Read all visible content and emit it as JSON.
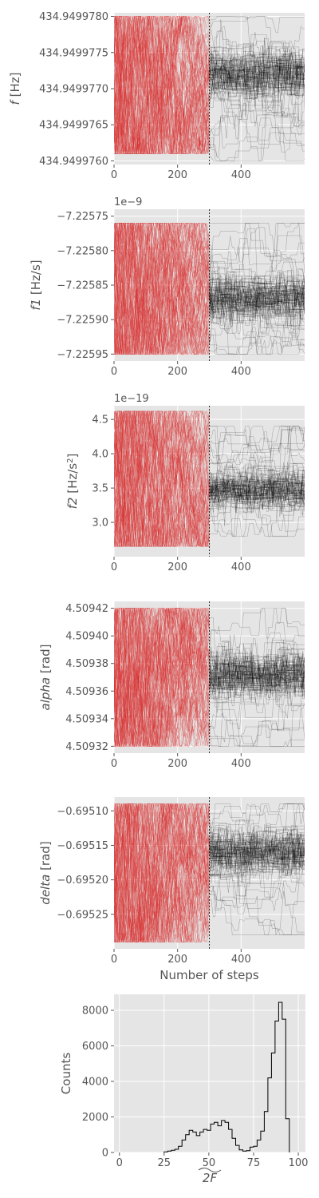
{
  "chart_data": [
    {
      "type": "line",
      "panel": "f",
      "ylabel": "f [Hz]",
      "ylabel_italic_symbol": "f",
      "ylabel_unit": " [Hz]",
      "offset_text": "",
      "x_ticks": [
        "0",
        "200",
        "400"
      ],
      "x_tick_values": [
        0,
        200,
        400
      ],
      "y_ticks": [
        "434.9499780",
        "434.9499775",
        "434.9499770",
        "434.9499765",
        "434.9499760"
      ],
      "y_tick_values": [
        434.949978,
        434.9499775,
        434.949977,
        434.9499765,
        434.949976
      ],
      "xlim": [
        0,
        600
      ],
      "ylim": [
        434.94997595,
        434.94997805
      ],
      "burnin_step": 300,
      "series": [
        {
          "role": "burn-in",
          "color": "#d62728",
          "x_range": [
            0,
            300
          ],
          "band_low": 434.9499761,
          "band_high": 434.949978,
          "center": 434.949977
        },
        {
          "role": "production",
          "color": "#000000",
          "x_range": [
            300,
            600
          ],
          "band_low": 434.949976,
          "band_high": 434.949978,
          "center": 434.9499772
        }
      ]
    },
    {
      "type": "line",
      "panel": "f1",
      "ylabel": "f1 [Hz/s]",
      "ylabel_italic_symbol": "f1",
      "ylabel_unit": " [Hz/s]",
      "offset_text": "1e−9",
      "x_ticks": [
        "0",
        "200",
        "400"
      ],
      "x_tick_values": [
        0,
        200,
        400
      ],
      "y_ticks": [
        "−7.22575",
        "−7.22580",
        "−7.22585",
        "−7.22590",
        "−7.22595"
      ],
      "y_tick_values": [
        -7.22575,
        -7.2258,
        -7.22585,
        -7.2259,
        -7.22595
      ],
      "xlim": [
        0,
        600
      ],
      "ylim": [
        -7.22596,
        -7.22574
      ],
      "burnin_step": 300,
      "series": [
        {
          "role": "burn-in",
          "color": "#d62728",
          "x_range": [
            0,
            300
          ],
          "band_low": -7.22595,
          "band_high": -7.22576,
          "center": -7.22586
        },
        {
          "role": "production",
          "color": "#000000",
          "x_range": [
            300,
            600
          ],
          "band_low": -7.22595,
          "band_high": -7.22576,
          "center": -7.22587
        }
      ]
    },
    {
      "type": "line",
      "panel": "f2",
      "ylabel": "f2 [Hz/s²]",
      "ylabel_italic_symbol": "f2",
      "ylabel_unit": " [Hz/s",
      "ylabel_sup": "2",
      "ylabel_tail": "]",
      "offset_text": "1e−19",
      "x_ticks": [
        "0",
        "200",
        "400"
      ],
      "x_tick_values": [
        0,
        200,
        400
      ],
      "y_ticks": [
        "4.5",
        "4.0",
        "3.5",
        "3.0"
      ],
      "y_tick_values": [
        4.5,
        4.0,
        3.5,
        3.0
      ],
      "xlim": [
        0,
        600
      ],
      "ylim": [
        2.5,
        4.7
      ],
      "burnin_step": 300,
      "series": [
        {
          "role": "burn-in",
          "color": "#d62728",
          "x_range": [
            0,
            300
          ],
          "band_low": 2.65,
          "band_high": 4.62,
          "center": 3.55
        },
        {
          "role": "production",
          "color": "#000000",
          "x_range": [
            300,
            600
          ],
          "band_low": 2.8,
          "band_high": 4.4,
          "center": 3.47
        }
      ]
    },
    {
      "type": "line",
      "panel": "alpha",
      "ylabel": "alpha [rad]",
      "ylabel_italic_symbol": "alpha",
      "ylabel_unit": " [rad]",
      "offset_text": "",
      "x_ticks": [
        "0",
        "200",
        "400"
      ],
      "x_tick_values": [
        0,
        200,
        400
      ],
      "y_ticks": [
        "4.50942",
        "4.50940",
        "4.50938",
        "4.50936",
        "4.50934",
        "4.50932"
      ],
      "y_tick_values": [
        4.50942,
        4.5094,
        4.50938,
        4.50936,
        4.50934,
        4.50932
      ],
      "xlim": [
        0,
        600
      ],
      "ylim": [
        4.509315,
        4.509425
      ],
      "burnin_step": 300,
      "series": [
        {
          "role": "burn-in",
          "color": "#d62728",
          "x_range": [
            0,
            300
          ],
          "band_low": 4.50932,
          "band_high": 4.50942,
          "center": 4.50937
        },
        {
          "role": "production",
          "color": "#000000",
          "x_range": [
            300,
            600
          ],
          "band_low": 4.50932,
          "band_high": 4.50942,
          "center": 4.509372
        }
      ]
    },
    {
      "type": "line",
      "panel": "delta",
      "ylabel": "delta [rad]",
      "ylabel_italic_symbol": "delta",
      "ylabel_unit": " [rad]",
      "xlabel": "Number of steps",
      "offset_text": "",
      "x_ticks": [
        "0",
        "200",
        "400"
      ],
      "x_tick_values": [
        0,
        200,
        400
      ],
      "y_ticks": [
        "−0.69510",
        "−0.69515",
        "−0.69520",
        "−0.69525"
      ],
      "y_tick_values": [
        -0.6951,
        -0.69515,
        -0.6952,
        -0.69525
      ],
      "xlim": [
        0,
        600
      ],
      "ylim": [
        -0.6953,
        -0.69508
      ],
      "burnin_step": 300,
      "series": [
        {
          "role": "burn-in",
          "color": "#d62728",
          "x_range": [
            0,
            300
          ],
          "band_low": -0.69529,
          "band_high": -0.69509,
          "center": -0.69518
        },
        {
          "role": "production",
          "color": "#000000",
          "x_range": [
            300,
            600
          ],
          "band_low": -0.69528,
          "band_high": -0.69509,
          "center": -0.69516
        }
      ]
    },
    {
      "type": "histogram",
      "panel": "twoF",
      "xlabel": "2F",
      "ylabel": "Counts",
      "x_ticks": [
        "0",
        "25",
        "50",
        "75",
        "100"
      ],
      "x_tick_values": [
        0,
        25,
        50,
        75,
        100
      ],
      "y_ticks": [
        "0",
        "2000",
        "4000",
        "6000",
        "8000"
      ],
      "y_tick_values": [
        0,
        2000,
        4000,
        6000,
        8000
      ],
      "xlim": [
        -3,
        104
      ],
      "ylim": [
        0,
        8900
      ],
      "bin_edges": [
        25,
        27,
        29,
        31,
        33,
        35,
        37,
        39,
        41,
        43,
        45,
        47,
        49,
        51,
        53,
        55,
        57,
        59,
        61,
        63,
        65,
        67,
        69,
        71,
        73,
        75,
        77,
        79,
        81,
        83,
        85,
        87,
        89,
        91,
        93,
        95
      ],
      "counts": [
        30,
        80,
        120,
        180,
        350,
        700,
        1000,
        1250,
        1150,
        950,
        1150,
        1300,
        1250,
        1600,
        1700,
        1500,
        1800,
        1700,
        1300,
        800,
        400,
        150,
        80,
        100,
        300,
        350,
        700,
        1200,
        2300,
        4200,
        5600,
        7400,
        8450,
        7500,
        1900
      ],
      "color": "#000000"
    }
  ]
}
